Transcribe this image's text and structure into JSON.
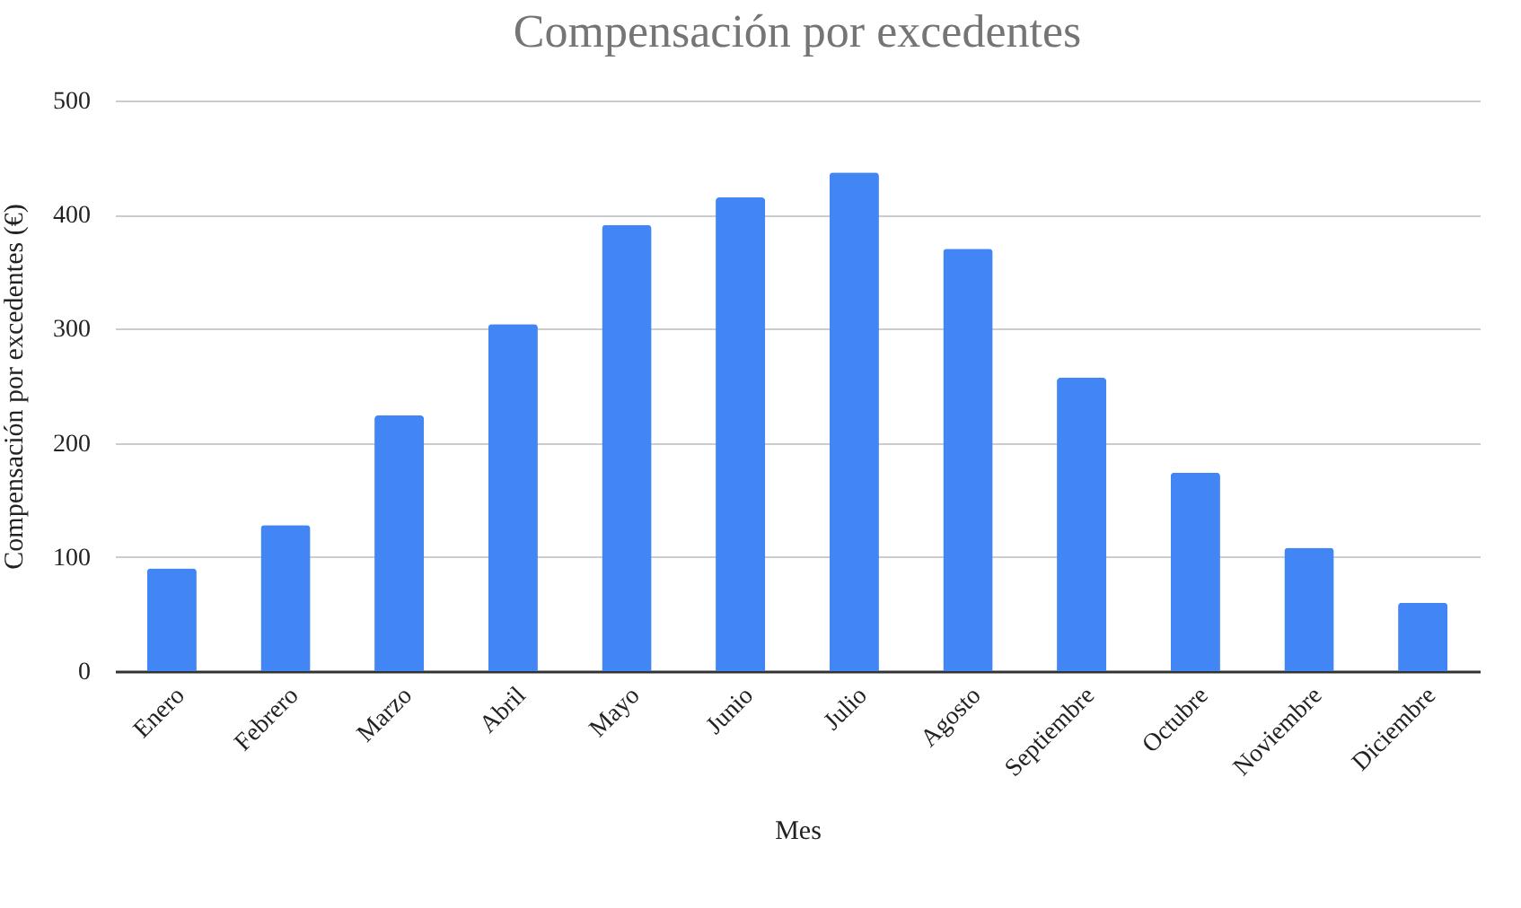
{
  "chart_data": {
    "type": "bar",
    "title": "Compensación por excedentes",
    "xlabel": "Mes",
    "ylabel": "Compensación por excedentes (€)",
    "categories": [
      "Enero",
      "Febrero",
      "Marzo",
      "Abril",
      "Mayo",
      "Junio",
      "Julio",
      "Agosto",
      "Septiembre",
      "Octubre",
      "Noviembre",
      "Diciembre"
    ],
    "values": [
      90,
      128,
      224,
      304,
      391,
      415,
      437,
      370,
      257,
      174,
      108,
      60
    ],
    "color": "#4285f4",
    "ylim": [
      0,
      500
    ],
    "yticks": [
      0,
      100,
      200,
      300,
      400,
      500
    ],
    "grid": "y"
  }
}
